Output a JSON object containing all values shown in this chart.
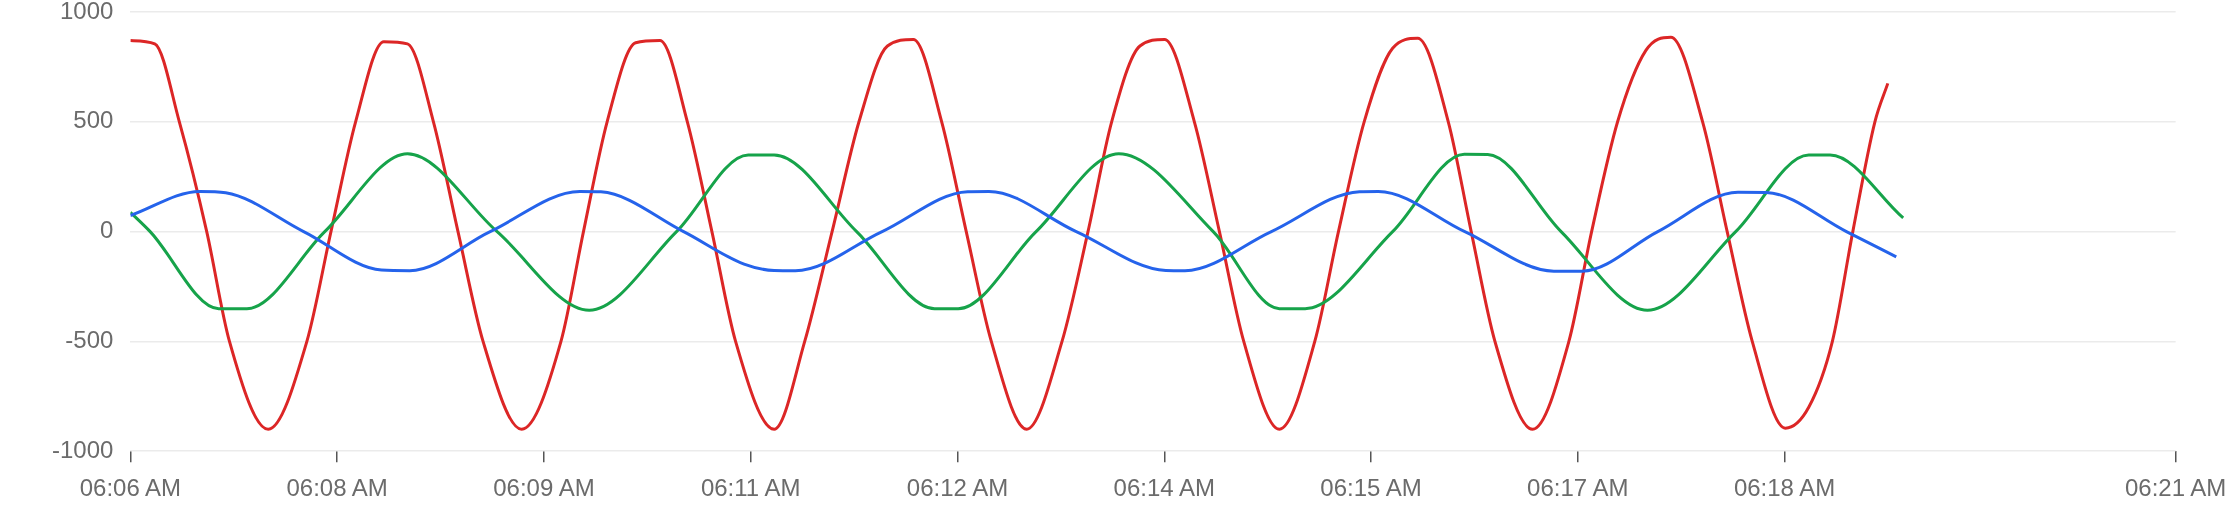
{
  "chart_data": {
    "type": "line",
    "xlim": [
      6.10833,
      6.35561
    ],
    "xticks": [
      {
        "value": 6.10833,
        "label": "06:06 AM"
      },
      {
        "value": 6.13333,
        "label": "06:08 AM"
      },
      {
        "value": 6.15833,
        "label": "06:09 AM"
      },
      {
        "value": 6.18333,
        "label": "06:11 AM"
      },
      {
        "value": 6.20833,
        "label": "06:12 AM"
      },
      {
        "value": 6.23333,
        "label": "06:14 AM"
      },
      {
        "value": 6.25833,
        "label": "06:15 AM"
      },
      {
        "value": 6.28333,
        "label": "06:17 AM"
      },
      {
        "value": 6.30833,
        "label": "06:18 AM"
      },
      {
        "value": 6.35561,
        "label": "06:21 AM"
      }
    ],
    "ylim": [
      -1000,
      1000
    ],
    "yticks": [
      -1000,
      -500,
      0,
      500,
      1000
    ],
    "grid": "y",
    "series": [
      {
        "color": "#2563eb",
        "x": [
          6.10833,
          6.11672,
          6.11986,
          6.12928,
          6.13869,
          6.14211,
          6.15183,
          6.16267,
          6.16522,
          6.17522,
          6.18253,
          6.18617,
          6.18872,
          6.19922,
          6.20956,
          6.21214,
          6.22269,
          6.23353,
          6.23583,
          6.24628,
          6.25694,
          6.25922,
          6.26967,
          6.28044,
          6.28386,
          6.293,
          6.30269,
          6.30611,
          6.31581,
          6.32183
        ],
        "values": [
          73,
          183,
          177,
          0,
          -175,
          -178,
          0,
          183,
          181,
          0,
          -148,
          -177,
          -178,
          0,
          182,
          183,
          0,
          -177,
          -178,
          0,
          182,
          183,
          0,
          -180,
          -180,
          0,
          179,
          178,
          0,
          -115
        ]
      },
      {
        "color": "#16a34a",
        "x": [
          6.10833,
          6.11072,
          6.119,
          6.12242,
          6.13183,
          6.14183,
          6.15267,
          6.16381,
          6.17436,
          6.18303,
          6.18617,
          6.19614,
          6.20556,
          6.20842,
          6.21783,
          6.22783,
          6.23925,
          6.24725,
          6.25036,
          6.26094,
          6.26961,
          6.27244,
          6.28131,
          6.29175,
          6.30242,
          6.31125,
          6.31383,
          6.32267
        ],
        "values": [
          88,
          0,
          -351,
          -351,
          0,
          355,
          0,
          -358,
          0,
          349,
          349,
          0,
          -351,
          -351,
          0,
          355,
          0,
          -351,
          -351,
          0,
          352,
          351,
          0,
          -358,
          0,
          349,
          349,
          62
        ]
      },
      {
        "color": "#dc2626",
        "x": [
          6.10833,
          6.11128,
          6.11425,
          6.11756,
          6.12031,
          6.125,
          6.12967,
          6.13258,
          6.13556,
          6.13897,
          6.14183,
          6.14497,
          6.14794,
          6.15097,
          6.15564,
          6.16039,
          6.16311,
          6.16597,
          6.16942,
          6.17236,
          6.17567,
          6.17864,
          6.1815,
          6.18617,
          6.18986,
          6.19317,
          6.19642,
          6.19986,
          6.203,
          6.20642,
          6.20939,
          6.21242,
          6.21669,
          6.22097,
          6.22411,
          6.22697,
          6.23039,
          6.23336,
          6.23697,
          6.24,
          6.24294,
          6.24725,
          6.25153,
          6.25439,
          6.2575,
          6.26094,
          6.26397,
          6.26767,
          6.27044,
          6.27331,
          6.27786,
          6.28225,
          6.285,
          6.28814,
          6.29156,
          6.29458,
          6.29842,
          6.30139,
          6.30442,
          6.30842,
          6.31125,
          6.31411,
          6.31658,
          6.31925,
          6.32081
        ],
        "values": [
          870,
          855,
          500,
          0,
          -500,
          -900,
          -500,
          0,
          500,
          865,
          855,
          500,
          0,
          -500,
          -900,
          -500,
          0,
          500,
          860,
          870,
          500,
          0,
          -500,
          -900,
          -500,
          0,
          500,
          845,
          875,
          500,
          0,
          -500,
          -900,
          -500,
          0,
          500,
          845,
          875,
          500,
          0,
          -500,
          -900,
          -500,
          0,
          500,
          835,
          880,
          500,
          0,
          -500,
          -900,
          -500,
          0,
          500,
          825,
          885,
          500,
          0,
          -500,
          -895,
          -800,
          -500,
          0,
          500,
          675
        ]
      }
    ]
  }
}
